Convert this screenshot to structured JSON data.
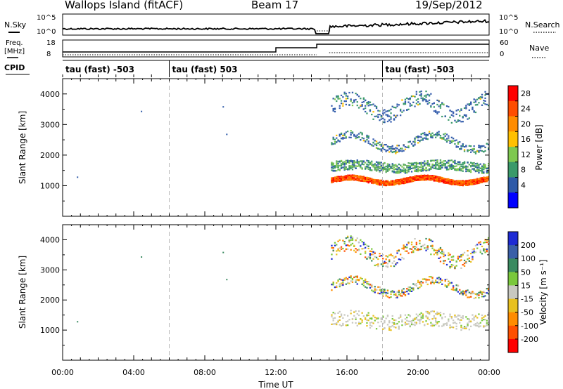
{
  "header": {
    "station": "Wallops Island (fitACF)",
    "beam": "Beam 17",
    "date": "19/Sep/2012"
  },
  "strips": {
    "nsky_label": "N.Sky",
    "nsearch_label": "N.Search",
    "log_ticks": [
      "10^5",
      "10^0"
    ],
    "freq_label_line1": "Freq.",
    "freq_label_line2": "[MHz]",
    "freq_ticks": [
      "18",
      "8"
    ],
    "nave_label": "Nave",
    "nave_ticks": [
      "60",
      "0"
    ],
    "cpid_label": "CPID",
    "cpid_segments": [
      {
        "label": "tau (fast) -503",
        "start_hour": 0
      },
      {
        "label": "tau (fast) 503",
        "start_hour": 6
      },
      {
        "label": "tau (fast) -503",
        "start_hour": 18
      }
    ],
    "freq_steps": [
      {
        "from_hour": 0,
        "to_hour": 12,
        "mhz": 9.5
      },
      {
        "from_hour": 12,
        "to_hour": 14.3,
        "mhz": 12.5
      },
      {
        "from_hour": 14.3,
        "to_hour": 24,
        "mhz": 15
      }
    ]
  },
  "axes": {
    "ylabel": "Slant Range [km]",
    "xlabel": "Time UT",
    "time_ticks": [
      "00:00",
      "04:00",
      "08:00",
      "12:00",
      "16:00",
      "20:00",
      "00:00"
    ],
    "range_ticks": [
      "1000",
      "2000",
      "3000",
      "4000"
    ]
  },
  "power_bar": {
    "label": "Power [dB]",
    "ticks": [
      "28",
      "24",
      "20",
      "16",
      "12",
      "8",
      "4"
    ],
    "colors": [
      "#ff0000",
      "#ff4d00",
      "#ff8c00",
      "#ffc000",
      "#7ec850",
      "#3a9a6a",
      "#2e5aa8",
      "#0000ff"
    ]
  },
  "velocity_bar": {
    "label": "Velocity [m s⁻¹]",
    "ticks": [
      "200",
      "100",
      "50",
      "15",
      "-15",
      "-50",
      "-100",
      "-200"
    ],
    "colors": [
      "#1e2bd4",
      "#3a5fa8",
      "#3a8a60",
      "#7ac83c",
      "#c8c8c0",
      "#e8c020",
      "#ff8c00",
      "#ff5000",
      "#ff0000"
    ]
  },
  "chart_data": [
    {
      "type": "heatmap",
      "panel": "power",
      "x_unit": "hours UT",
      "y_unit": "km",
      "xlim": [
        0,
        24
      ],
      "ylim": [
        0,
        4500
      ],
      "echo_start_hour": 15.1,
      "bands": [
        {
          "name": "ground scatter",
          "center_km": 1200,
          "amp_km": 90,
          "period_h": 4.2,
          "width_km": 160,
          "level": "high"
        },
        {
          "name": "mid band",
          "center_km": 1650,
          "amp_km": 60,
          "period_h": 5.0,
          "width_km": 320,
          "level": "mid"
        },
        {
          "name": "upper band",
          "center_km": 2450,
          "amp_km": 250,
          "period_h": 4.6,
          "width_km": 260,
          "level": "low"
        },
        {
          "name": "top band",
          "center_km": 3600,
          "amp_km": 300,
          "period_h": 4.0,
          "width_km": 500,
          "level": "low"
        }
      ]
    },
    {
      "type": "heatmap",
      "panel": "velocity",
      "x_unit": "hours UT",
      "y_unit": "km",
      "xlim": [
        0,
        24
      ],
      "ylim": [
        0,
        4500
      ],
      "echo_start_hour": 15.1,
      "bands": [
        {
          "name": "ground scatter",
          "center_km": 1350,
          "amp_km": 80,
          "period_h": 4.2,
          "width_km": 500,
          "level": "low"
        },
        {
          "name": "upper band",
          "center_km": 2450,
          "amp_km": 250,
          "period_h": 4.6,
          "width_km": 260,
          "level": "mixed"
        },
        {
          "name": "top band",
          "center_km": 3600,
          "amp_km": 300,
          "period_h": 4.0,
          "width_km": 500,
          "level": "mixed"
        }
      ]
    }
  ]
}
